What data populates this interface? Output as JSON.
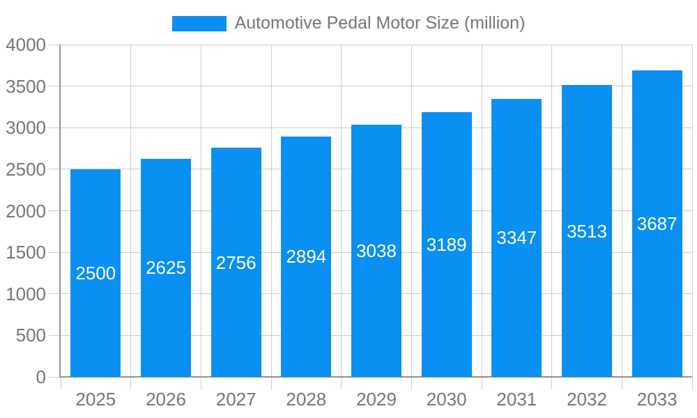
{
  "legend": {
    "label": "Automotive Pedal Motor Size (million)"
  },
  "chart_data": {
    "type": "bar",
    "title": "Automotive Pedal Motor Size (million)",
    "categories": [
      "2025",
      "2026",
      "2027",
      "2028",
      "2029",
      "2030",
      "2031",
      "2032",
      "2033"
    ],
    "values": [
      2500,
      2625,
      2756,
      2894,
      3038,
      3189,
      3347,
      3513,
      3687
    ],
    "xlabel": "",
    "ylabel": "",
    "ylim": [
      0,
      4000
    ],
    "yticks": [
      0,
      500,
      1000,
      1500,
      2000,
      2500,
      3000,
      3500,
      4000
    ],
    "grid": true,
    "legend_position": "top-center",
    "value_labels": "inside-center",
    "colors": {
      "bar": "#0a8ff2",
      "value_label": "#ffffff",
      "axis_text": "#757575",
      "gridline": "#cccccc",
      "axis_line": "#919191",
      "background": "#ffffff"
    }
  }
}
